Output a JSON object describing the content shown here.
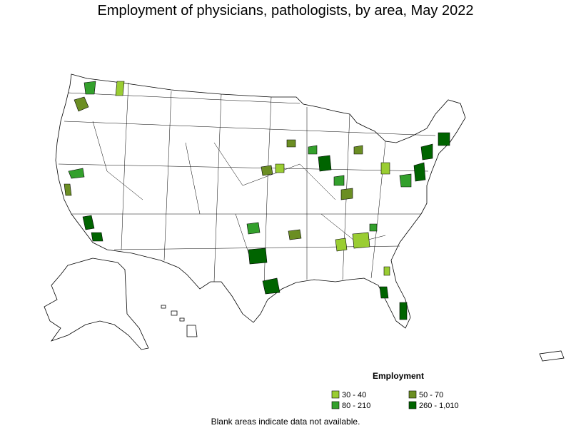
{
  "title": "Employment of physicians, pathologists, by area, May 2022",
  "legend": {
    "title": "Employment",
    "items": [
      {
        "label": "30 - 40",
        "color": "#9acd32"
      },
      {
        "label": "50 - 70",
        "color": "#6b8e23"
      },
      {
        "label": "80 - 210",
        "color": "#33a02c"
      },
      {
        "label": "260 - 1,010",
        "color": "#006400"
      }
    ]
  },
  "footnote": "Blank areas indicate data not available."
}
